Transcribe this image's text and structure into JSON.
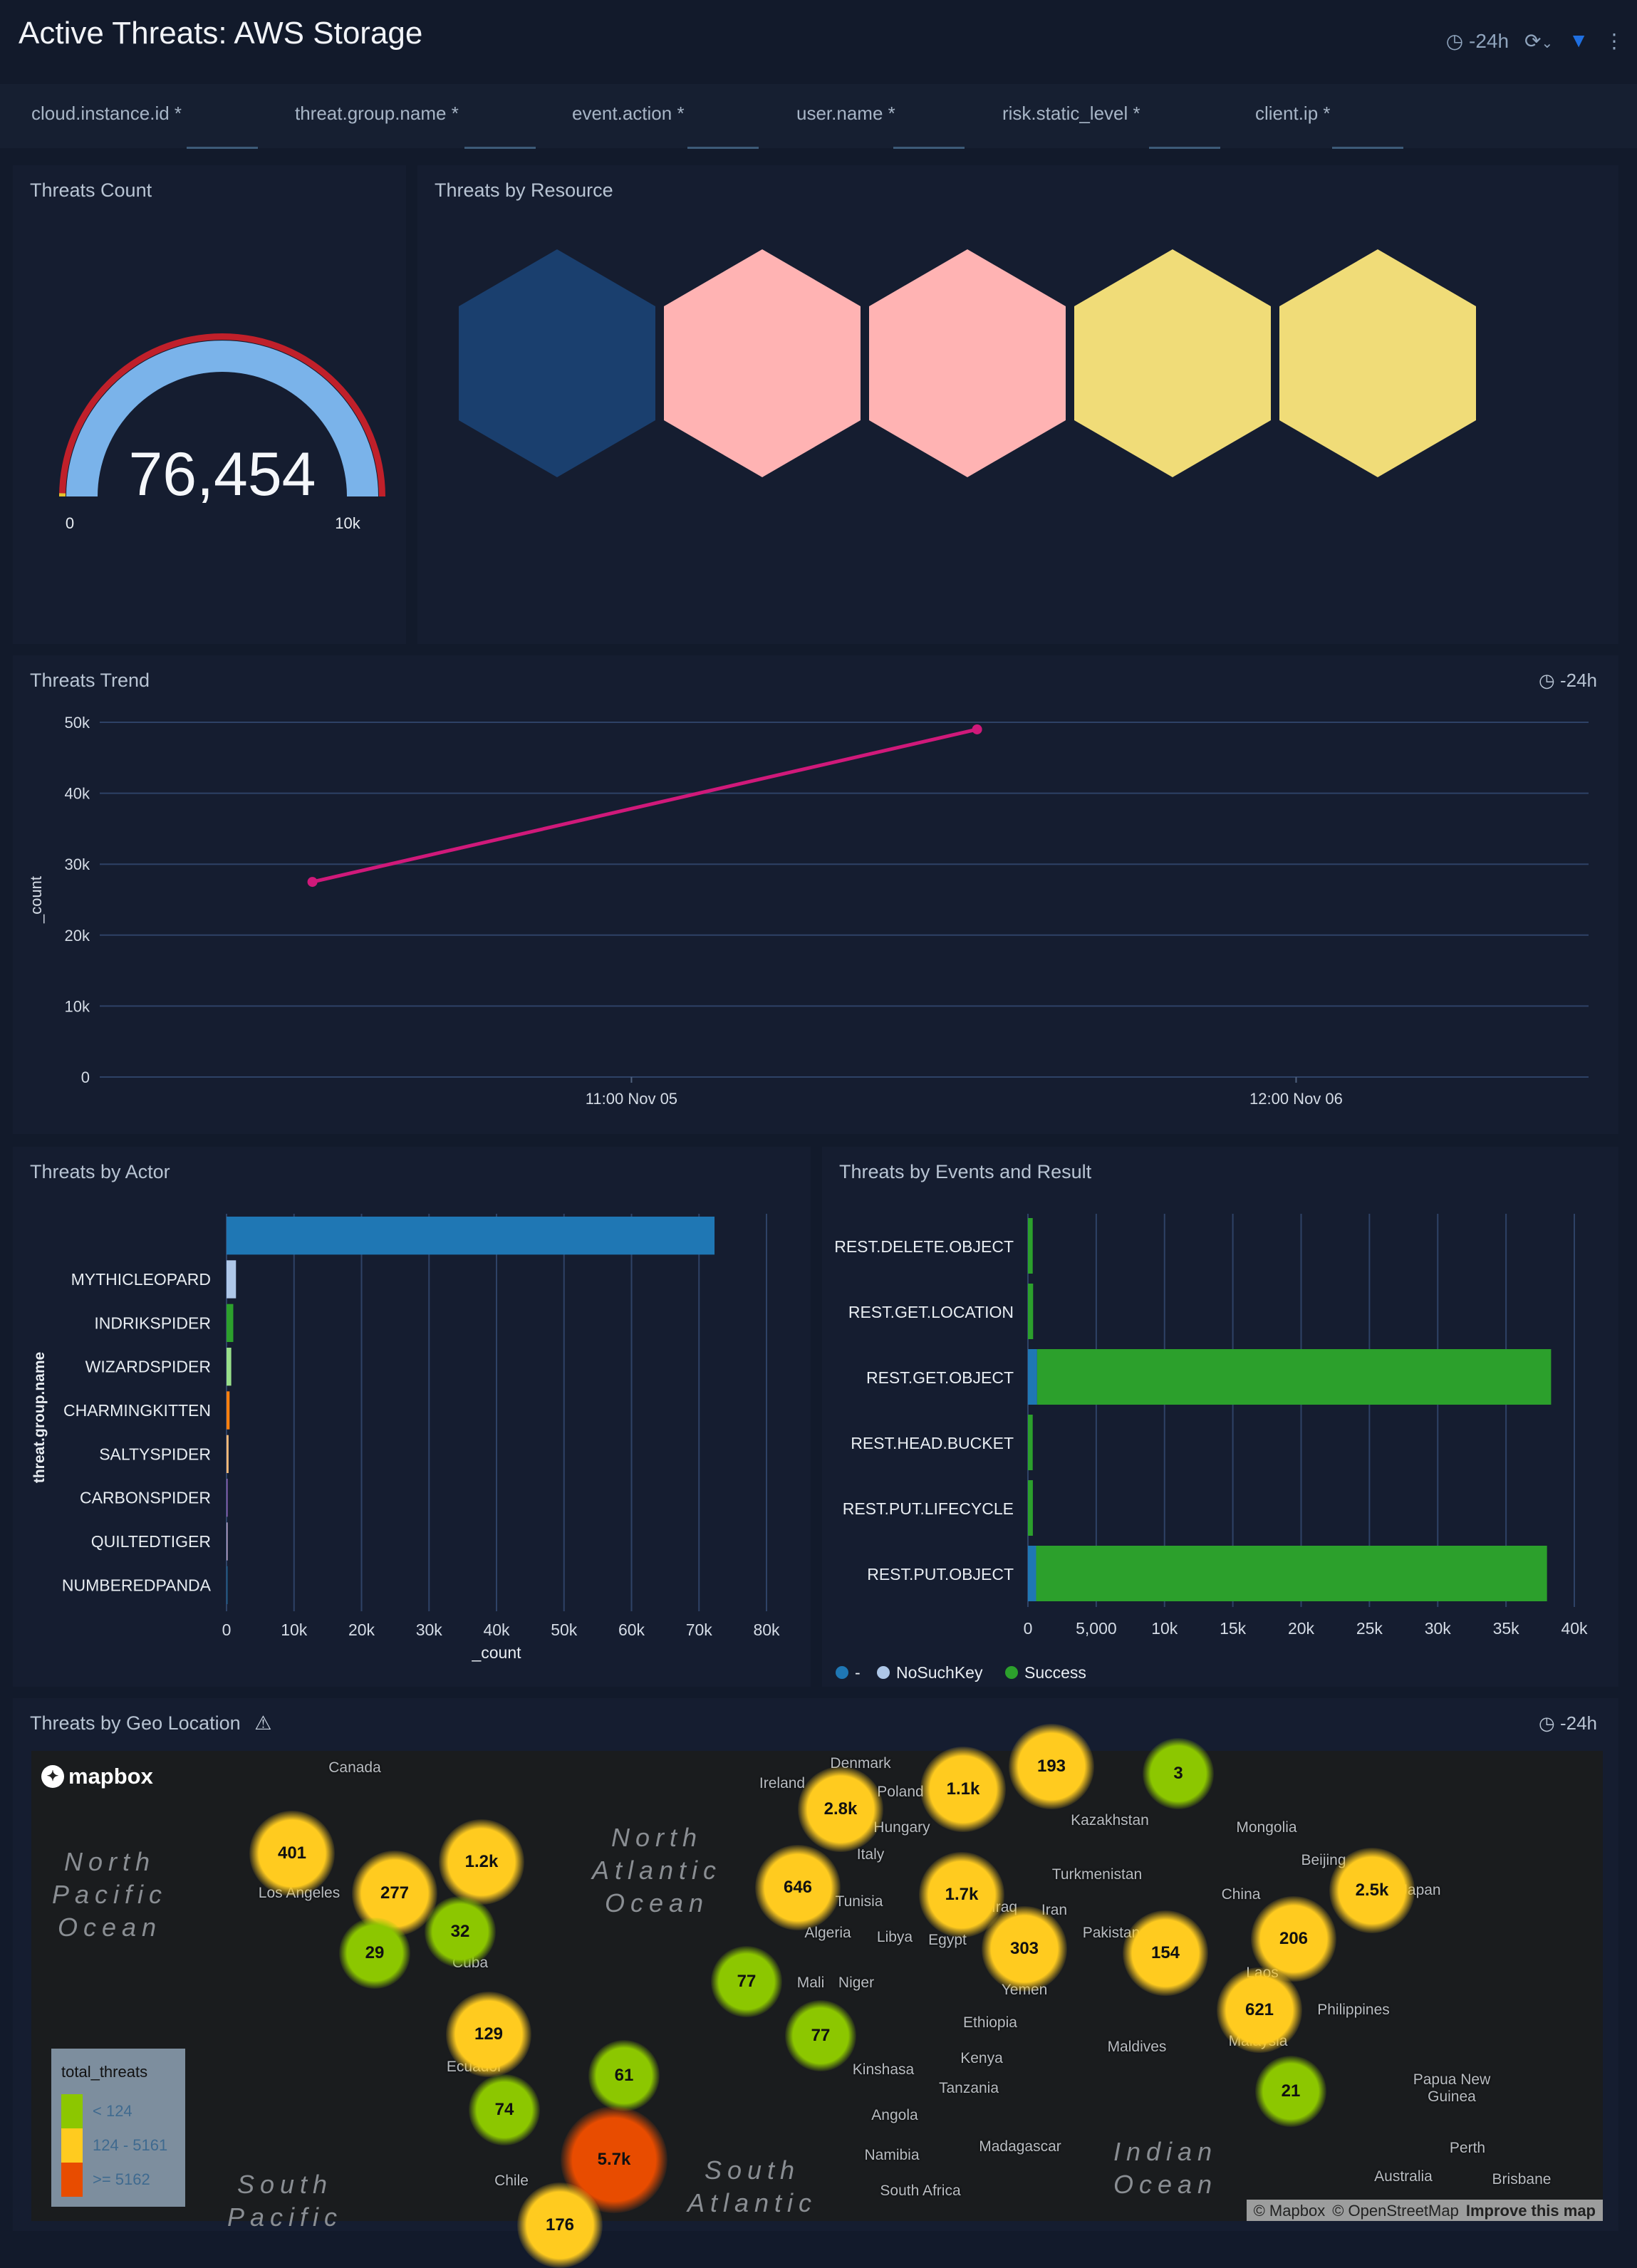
{
  "header": {
    "title": "Active Threats: AWS Storage",
    "time_range": "-24h",
    "icons": [
      "clock-icon",
      "refresh-icon",
      "chevron-down-icon",
      "filter-icon",
      "kebab-menu-icon"
    ],
    "filter_color": "#1f6fe0"
  },
  "filters": [
    {
      "label": "cloud.instance.id",
      "value": "*"
    },
    {
      "label": "threat.group.name",
      "value": "*"
    },
    {
      "label": "event.action",
      "value": "*"
    },
    {
      "label": "user.name",
      "value": "*"
    },
    {
      "label": "risk.static_level",
      "value": "*"
    },
    {
      "label": "client.ip",
      "value": "*"
    }
  ],
  "threats_count": {
    "title": "Threats Count",
    "value": 76454,
    "value_label": "76,454",
    "min_label": "0",
    "max_label": "10k",
    "min": 0,
    "max": 10000,
    "colors": {
      "fill": "#7ab3ea",
      "outer": "#c0202a",
      "low": "#e3c22e"
    }
  },
  "threats_by_resource": {
    "title": "Threats by Resource",
    "hexes": [
      {
        "color": "#1a3f6e"
      },
      {
        "color": "#ffb3b3"
      },
      {
        "color": "#ffb3b3"
      },
      {
        "color": "#f0dc78"
      },
      {
        "color": "#f0dc78"
      }
    ]
  },
  "chart_data": [
    {
      "type": "line",
      "title": "Threats Trend",
      "time_range": "-24h",
      "ylabel": "_count",
      "xlabel": "",
      "ylim": [
        0,
        50000
      ],
      "yticks": [
        "0",
        "10k",
        "20k",
        "30k",
        "40k",
        "50k"
      ],
      "ytick_values": [
        0,
        10000,
        20000,
        30000,
        40000,
        50000
      ],
      "xticks": [
        {
          "label": "11:00 Nov 05",
          "t": "Nov 05 11:00"
        },
        {
          "label": "12:00 Nov 06",
          "t": "Nov 06 12:00"
        }
      ],
      "xlim": [
        "Nov 04 15:00",
        "Nov 06 23:00"
      ],
      "points": [
        {
          "x": "Nov 04 23:00",
          "y": 27500
        },
        {
          "x": "Nov 06 00:00",
          "y": 49000
        }
      ],
      "color": "#d0197a",
      "grid": true
    },
    {
      "type": "bar",
      "orientation": "horizontal",
      "title": "Threats by Actor",
      "ylabel": "threat.group.name",
      "xlabel": "_count",
      "xlim": [
        0,
        80000
      ],
      "xticks": [
        "0",
        "10k",
        "20k",
        "30k",
        "40k",
        "50k",
        "60k",
        "70k",
        "80k"
      ],
      "categories": [
        "",
        "MYTHICLEOPARD",
        "INDRIKSPIDER",
        "WIZARDSPIDER",
        "CHARMINGKITTEN",
        "SALTYSPIDER",
        "CARBONSPIDER",
        "QUILTEDTIGER",
        "NUMBEREDPANDA"
      ],
      "values": [
        72300,
        1400,
        1000,
        700,
        450,
        300,
        120,
        100,
        60
      ],
      "colors": [
        "#1f77b4",
        "#aec7e8",
        "#2ca02c",
        "#98df8a",
        "#ff7f0e",
        "#ffbb78",
        "#9467bd",
        "#c5b0d5",
        "#1f5f8b"
      ],
      "grid": true
    },
    {
      "type": "bar",
      "orientation": "horizontal",
      "stacked": true,
      "title": "Threats by Events and Result",
      "xlim": [
        0,
        40000
      ],
      "xticks": [
        "0",
        "5,000",
        "10k",
        "15k",
        "20k",
        "25k",
        "30k",
        "35k",
        "40k"
      ],
      "categories": [
        "REST.DELETE.OBJECT",
        "REST.GET.LOCATION",
        "REST.GET.OBJECT",
        "REST.HEAD.BUCKET",
        "REST.PUT.LIFECYCLE",
        "REST.PUT.OBJECT"
      ],
      "series": [
        {
          "name": "-",
          "color": "#1f77b4",
          "values": [
            0,
            0,
            670,
            0,
            0,
            600
          ]
        },
        {
          "name": "NoSuchKey",
          "color": "#aec7e8",
          "values": [
            0,
            0,
            0,
            0,
            0,
            0
          ]
        },
        {
          "name": "Success",
          "color": "#2ca02c",
          "values": [
            350,
            380,
            37630,
            350,
            360,
            37400
          ]
        }
      ],
      "legend": "bottom-left",
      "grid": true
    }
  ],
  "geo": {
    "title": "Threats by Geo Location",
    "time_range": "-24h",
    "logo": "mapbox",
    "attribution": {
      "mapbox": "© Mapbox",
      "osm": "© OpenStreetMap",
      "improve": "Improve this map"
    },
    "legend": {
      "title": "total_threats",
      "items": [
        {
          "label": "< 124",
          "color": "#8cc700"
        },
        {
          "label": "124 - 5161",
          "color": "#ffcb1f"
        },
        {
          "label": ">= 5162",
          "color": "#e84c00"
        }
      ]
    },
    "clusters": [
      {
        "label": "401"
      },
      {
        "label": "277"
      },
      {
        "label": "1.2k"
      },
      {
        "label": "29"
      },
      {
        "label": "32"
      },
      {
        "label": "129"
      },
      {
        "label": "74"
      },
      {
        "label": "61"
      },
      {
        "label": "5.7k"
      },
      {
        "label": "176"
      },
      {
        "label": "77"
      },
      {
        "label": "77"
      },
      {
        "label": "646"
      },
      {
        "label": "2.8k"
      },
      {
        "label": "1.1k"
      },
      {
        "label": "193"
      },
      {
        "label": "3"
      },
      {
        "label": "1.7k"
      },
      {
        "label": "303"
      },
      {
        "label": "154"
      },
      {
        "label": "206"
      },
      {
        "label": "2.5k"
      },
      {
        "label": "621"
      },
      {
        "label": "21"
      }
    ],
    "places": [
      "Canada",
      "Ireland",
      "Denmark",
      "Poland",
      "Hungary",
      "Italy",
      "Tunisia",
      "Algeria",
      "Libya",
      "Egypt",
      "Mali",
      "Niger",
      "Kazakhstan",
      "Turkmenistan",
      "Iraq",
      "Iran",
      "Pakistan",
      "Yemen",
      "Mongolia",
      "Beijing",
      "China",
      "Japan",
      "Laos",
      "Philippines",
      "Malaysia",
      "Maldives",
      "Ethiopia",
      "Kenya",
      "Tanzania",
      "Kinshasa",
      "Angola",
      "Namibia",
      "Madagascar",
      "South Africa",
      "Papua New\nGuinea",
      "Australia",
      "Brisbane",
      "Perth",
      "Los Angeles",
      "Cuba",
      "Ecuador",
      "Chile"
    ],
    "oceans": [
      "North\nPacific\nOcean",
      "North\nAtlantic\nOcean",
      "South\nAtlantic",
      "Indian\nOcean",
      "South\nPacific"
    ]
  }
}
